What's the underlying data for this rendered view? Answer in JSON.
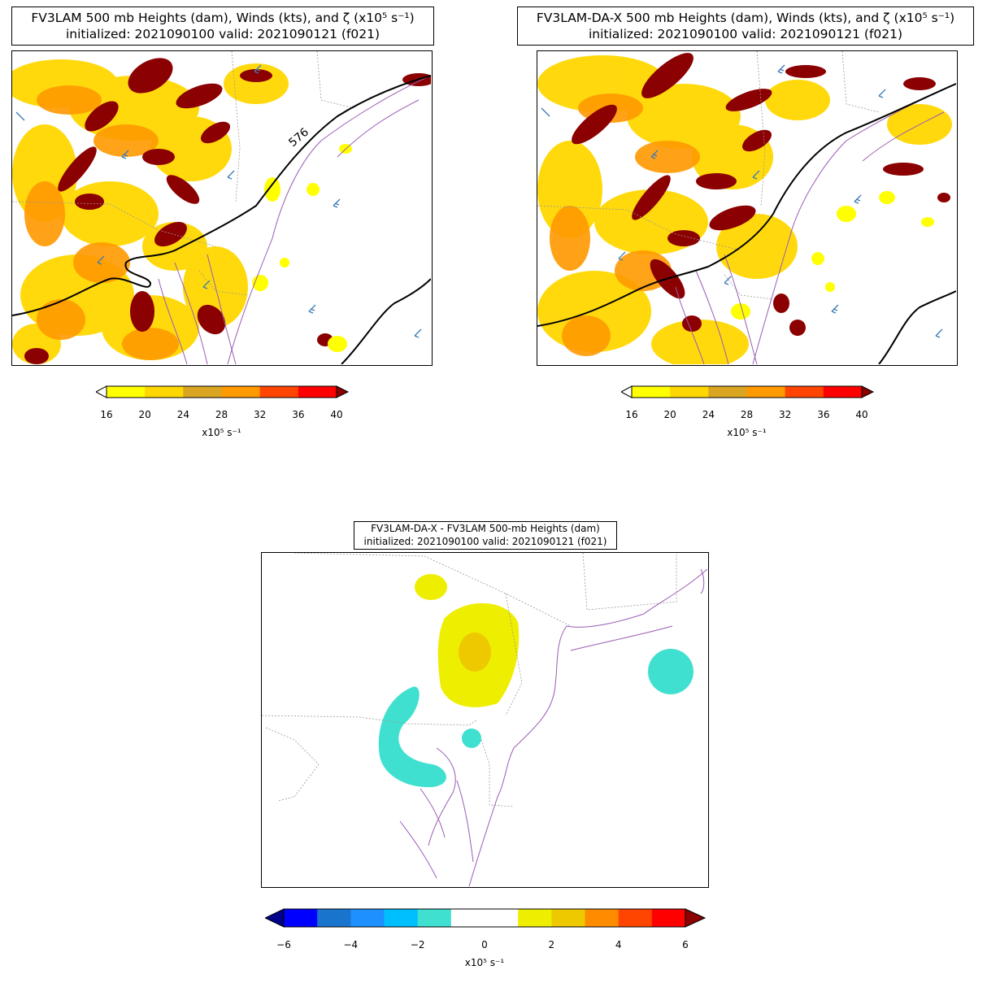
{
  "panel_a": {
    "title_line1": "FV3LAM 500 mb Heights (dam), Winds (kts), and ζ (x10⁵ s⁻¹)",
    "title_line2": "initialized: 2021090100 valid: 2021090121 (f021)",
    "contour_label": "576"
  },
  "panel_b": {
    "title_line1": "FV3LAM-DA-X 500 mb Heights (dam), Winds (kts), and ζ (x10⁵ s⁻¹)",
    "title_line2": "initialized: 2021090100 valid: 2021090121 (f021)"
  },
  "panel_c": {
    "title_line1": "FV3LAM-DA-X - FV3LAM 500-mb Heights (dam)",
    "title_line2": "initialized: 2021090100 valid: 2021090121 (f021)"
  },
  "colorbar_vort": {
    "ticks": [
      "16",
      "20",
      "24",
      "28",
      "32",
      "36",
      "40"
    ],
    "colors": [
      "#ffff00",
      "#ffd700",
      "#daa520",
      "#ff9900",
      "#ff4500",
      "#ff0000"
    ],
    "under_color": "#ffffff",
    "over_color": "#8b0000",
    "unit": "x10⁵ s⁻¹"
  },
  "colorbar_diff": {
    "ticks": [
      "−6",
      "−4",
      "−2",
      "0",
      "2",
      "4",
      "6"
    ],
    "colors": [
      "#0000ff",
      "#1874cd",
      "#1e90ff",
      "#00bfff",
      "#40e0d0",
      "#ffffff",
      "#ffffff",
      "#eeee00",
      "#eec900",
      "#ff8c00",
      "#ff4500",
      "#ff0000"
    ],
    "under_color": "#00008b",
    "over_color": "#8b0000",
    "unit": "x10⁵ s⁻¹"
  },
  "colors": {
    "coast": "#9a5bb5",
    "border": "#999999",
    "barb": "#3a7ab8",
    "vort_dark": "#8b0000"
  }
}
